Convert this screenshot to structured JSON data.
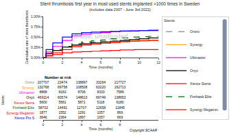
{
  "chart_data": [
    {
      "type": "line",
      "title": "Stent thrombosis first year in most used stents implanted >1000 times in Sweden",
      "subtitle": "(includes data 2007 - June 3rd 2022)",
      "xlabel": "Time (months)",
      "ylabel": "Cumulative rate of stent thrombosis",
      "annotations": [
        "Crude, unadjusted",
        "Copyright SCAAR"
      ],
      "legend": "right",
      "legend_title": "Stents",
      "grid": false,
      "xlim": [
        0,
        12
      ],
      "xticks": [
        0,
        2,
        4,
        6,
        8,
        10,
        12
      ],
      "ylim": [
        0,
        0.01
      ],
      "yticks": [
        {
          "value": 0.0,
          "label": "0.00%"
        },
        {
          "value": 0.0025,
          "label": "0.25%"
        },
        {
          "value": 0.005,
          "label": "0.50%"
        },
        {
          "value": 0.0075,
          "label": "0.75%"
        },
        {
          "value": 0.01,
          "label": "1.00%"
        }
      ],
      "series": [
        {
          "name": "Orsiro",
          "color": "#888888",
          "line_style": "dashed",
          "x": [
            0,
            0.3,
            1,
            2,
            3,
            4,
            5,
            6,
            7,
            8,
            9,
            10,
            11,
            12
          ],
          "values": [
            0,
            0.0012,
            0.002,
            0.0028,
            0.0033,
            0.0036,
            0.0038,
            0.004,
            0.0042,
            0.0044,
            0.0046,
            0.0047,
            0.0048,
            0.005
          ]
        },
        {
          "name": "Synergy",
          "color": "#FFA500",
          "line_style": "solid",
          "x": [
            0,
            0.3,
            1,
            2,
            3,
            4,
            5,
            6,
            7,
            8,
            9,
            10,
            11,
            12
          ],
          "values": [
            0,
            0.001,
            0.0018,
            0.0026,
            0.0029,
            0.0031,
            0.0033,
            0.0035,
            0.0037,
            0.0039,
            0.0041,
            0.0042,
            0.0043,
            0.0044
          ]
        },
        {
          "name": "Ultimaster",
          "color": "#FF00FF",
          "line_style": "solid",
          "x": [
            0,
            0.3,
            1,
            2,
            3,
            4,
            5,
            6,
            7,
            8,
            9,
            10,
            11,
            12
          ],
          "values": [
            0,
            0.0014,
            0.0028,
            0.0042,
            0.0053,
            0.0057,
            0.0059,
            0.0061,
            0.0063,
            0.0064,
            0.0065,
            0.0066,
            0.0067,
            0.0068
          ]
        },
        {
          "name": "Onyx",
          "color": "#000000",
          "line_style": "solid",
          "x": [
            0,
            0.3,
            1,
            2,
            3,
            4,
            5,
            6,
            7,
            8,
            9,
            10,
            11,
            12
          ],
          "values": [
            0,
            0.001,
            0.0018,
            0.0026,
            0.0031,
            0.0034,
            0.0036,
            0.0038,
            0.004,
            0.0042,
            0.0044,
            0.0046,
            0.0048,
            0.005
          ]
        },
        {
          "name": "Xience Sierra",
          "color": "#FF0000",
          "line_style": "solid",
          "x": [
            0,
            0.3,
            1,
            2,
            3,
            4,
            5,
            6,
            7,
            8,
            9,
            9.5,
            10,
            12
          ],
          "values": [
            0,
            0.0004,
            0.0008,
            0.0012,
            0.0014,
            0.0015,
            0.0016,
            0.0017,
            0.0018,
            0.0019,
            0.0019,
            0.002,
            0.002,
            0.002
          ]
        },
        {
          "name": "Firehawk Elite",
          "color": "#006400",
          "line_style": "dashed",
          "x": [
            0,
            0.3,
            1,
            2,
            3,
            4,
            5,
            6,
            7,
            8,
            9,
            10,
            11,
            12
          ],
          "values": [
            0,
            0.001,
            0.0019,
            0.0028,
            0.0034,
            0.0038,
            0.0041,
            0.0043,
            0.0046,
            0.0048,
            0.005,
            0.0051,
            0.0052,
            0.0053
          ]
        },
        {
          "name": "Synergy Megatron",
          "color": "#FF0000",
          "line_style": "solid",
          "x": [
            0,
            0.3,
            1,
            2,
            3,
            4,
            5,
            6,
            7,
            8,
            9,
            10,
            11,
            12
          ],
          "values": [
            0,
            0.0006,
            0.0012,
            0.002,
            0.0027,
            0.0031,
            0.0033,
            0.0035,
            0.0037,
            0.0039,
            0.004,
            0.0041,
            0.0042,
            0.0043
          ]
        },
        {
          "name": "Xience Pro S",
          "color": "#0000FF",
          "line_style": "solid",
          "x": [
            0,
            0.3,
            1,
            2,
            3,
            4,
            5,
            6,
            7,
            8,
            9,
            10,
            11,
            12
          ],
          "values": [
            0,
            0.002,
            0.0036,
            0.005,
            0.0058,
            0.0061,
            0.0062,
            0.0063,
            0.0064,
            0.0065,
            0.0065,
            0.0066,
            0.0066,
            0.0067
          ]
        }
      ]
    },
    {
      "type": "table",
      "title": "Number at risk",
      "xlabel": "Time (months)",
      "ylabel": "Stents",
      "grid": false,
      "xlim": [
        0,
        12
      ],
      "xticks": [
        0,
        2,
        4,
        6,
        8
      ],
      "x": [
        0,
        2,
        4,
        6,
        8
      ],
      "series": [
        {
          "name": "Orsiro",
          "color": "#888888",
          "values": [
            207707,
            23474,
            138897,
            33264,
            217727
          ]
        },
        {
          "name": "Synergy",
          "color": "#FFA500",
          "values": [
            132768,
            69758,
            108508,
            63220,
            162713
          ]
        },
        {
          "name": "Ultimaster",
          "color": "#FF00FF",
          "values": [
            8868,
            8163,
            8706,
            8333,
            7589
          ]
        },
        {
          "name": "Onyx",
          "color": "#000000",
          "values": [
            469114,
            60574,
            148613,
            69749,
            138653
          ]
        },
        {
          "name": "Xience Sierra",
          "color": "#FF0000",
          "values": [
            5600,
            5561,
            5871,
            5118,
            6180
          ]
        },
        {
          "name": "Firehawk Elite",
          "color": "#006400",
          "values": [
            58702,
            14491,
            12707,
            12658,
            11845
          ]
        },
        {
          "name": "Synergy Megatron",
          "color": "#FF0000",
          "values": [
            1877,
            1552,
            1291,
            1057,
            866
          ]
        },
        {
          "name": "Xience Pro S",
          "color": "#0000FF",
          "values": [
            3646,
            2364,
            1897,
            1057,
            669
          ]
        }
      ]
    }
  ]
}
